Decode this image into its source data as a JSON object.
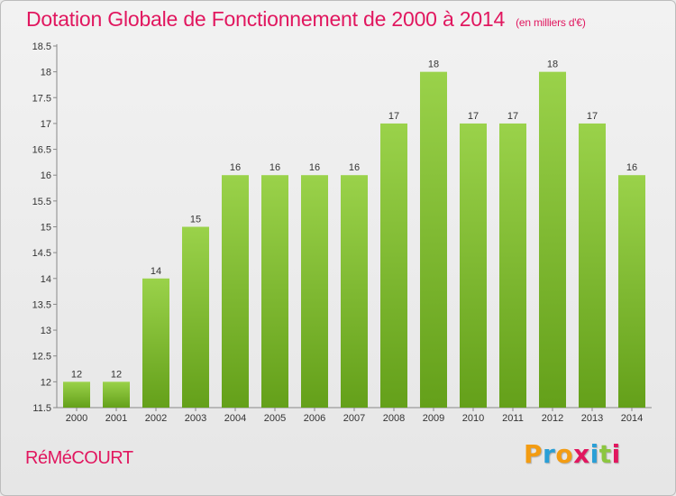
{
  "title": "Dotation Globale de Fonctionnement de 2000 à 2014",
  "subtitle": "(en milliers d'€)",
  "commune": "RéMéCOURT",
  "logo": {
    "text": "Proxiti",
    "letters": [
      "P",
      "r",
      "o",
      "x",
      "i",
      "t",
      "i"
    ],
    "colors": [
      "#f39c12",
      "#2a9fd6",
      "#f39c12",
      "#e1175f",
      "#2a9fd6",
      "#8cc63f",
      "#e1175f"
    ]
  },
  "colors": {
    "title": "#e1175f",
    "bar_top": "#9ad24a",
    "bar_bottom": "#64a01a",
    "axis": "#888888"
  },
  "chart_data": {
    "type": "bar",
    "categories": [
      "2000",
      "2001",
      "2002",
      "2003",
      "2004",
      "2005",
      "2006",
      "2007",
      "2008",
      "2009",
      "2010",
      "2011",
      "2012",
      "2013",
      "2014"
    ],
    "values": [
      12,
      12,
      14,
      15,
      16,
      16,
      16,
      16,
      17,
      18,
      17,
      17,
      18,
      17,
      16
    ],
    "ylim": [
      11.5,
      18.5
    ],
    "yticks": [
      "11.5",
      "12",
      "12.5",
      "13",
      "13.5",
      "14",
      "14.5",
      "15",
      "15.5",
      "16",
      "16.5",
      "17",
      "17.5",
      "18",
      "18.5"
    ],
    "grid": false
  }
}
